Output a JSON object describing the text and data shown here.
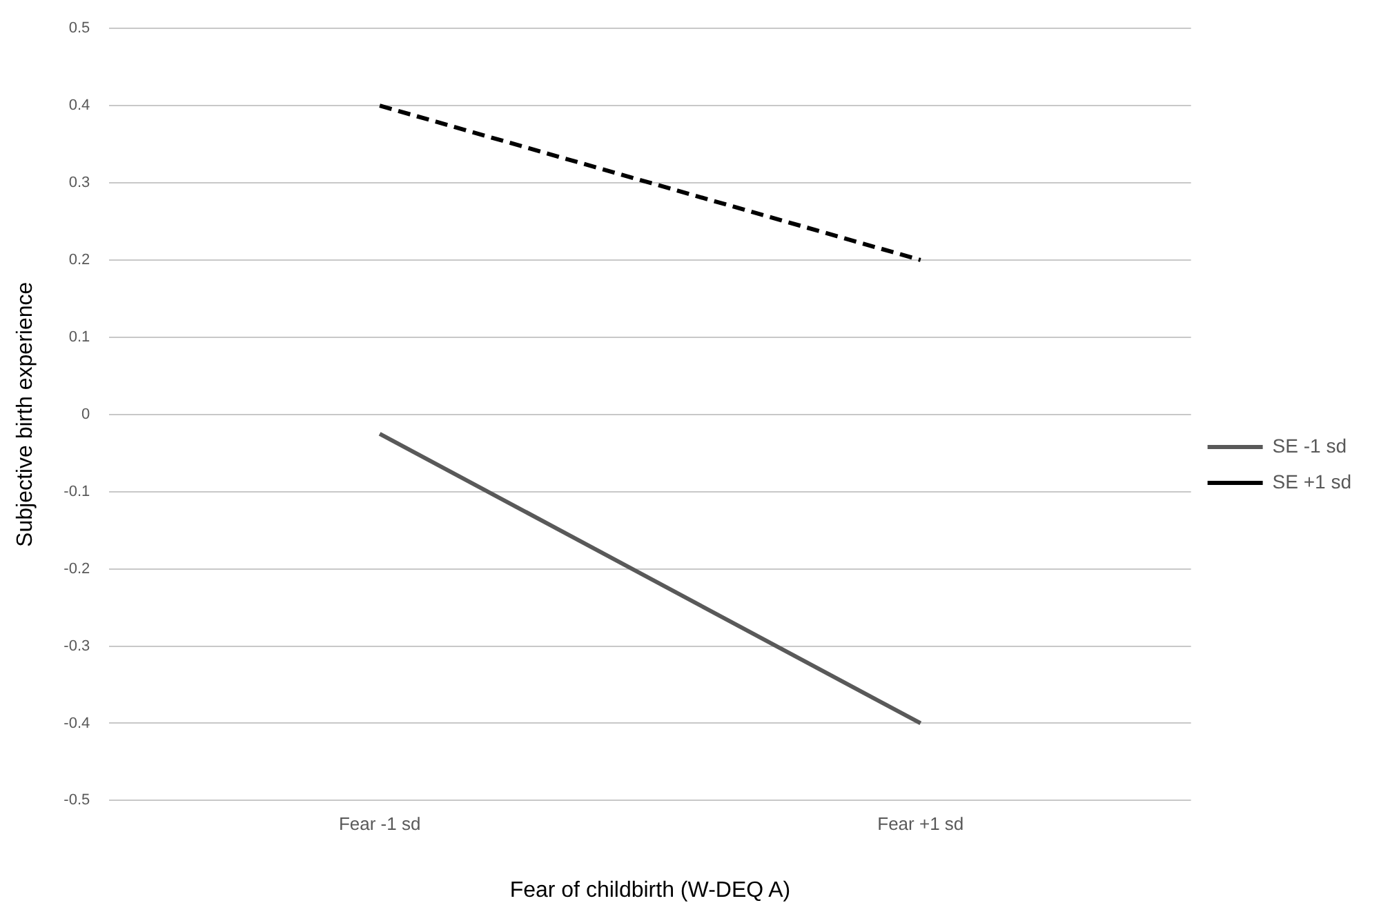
{
  "chart_data": {
    "type": "line",
    "xlabel": "Fear of childbirth (W-DEQ A)",
    "ylabel": "Subjective birth experience",
    "categories": [
      "Fear -1 sd",
      "Fear +1 sd"
    ],
    "series": [
      {
        "name": "SE -1 sd",
        "color": "#595959",
        "values": [
          -0.025,
          -0.4
        ],
        "line_style": "solid"
      },
      {
        "name": "SE +1 sd",
        "color": "#000000",
        "values": [
          0.4,
          0.2
        ],
        "line_style": "dashed"
      }
    ],
    "ylim": [
      -0.5,
      0.5
    ],
    "yticks": [
      -0.5,
      -0.4,
      -0.3,
      -0.2,
      -0.1,
      0,
      0.1,
      0.2,
      0.3,
      0.4,
      0.5
    ],
    "grid": "y",
    "legend": "right",
    "marker": "none"
  }
}
